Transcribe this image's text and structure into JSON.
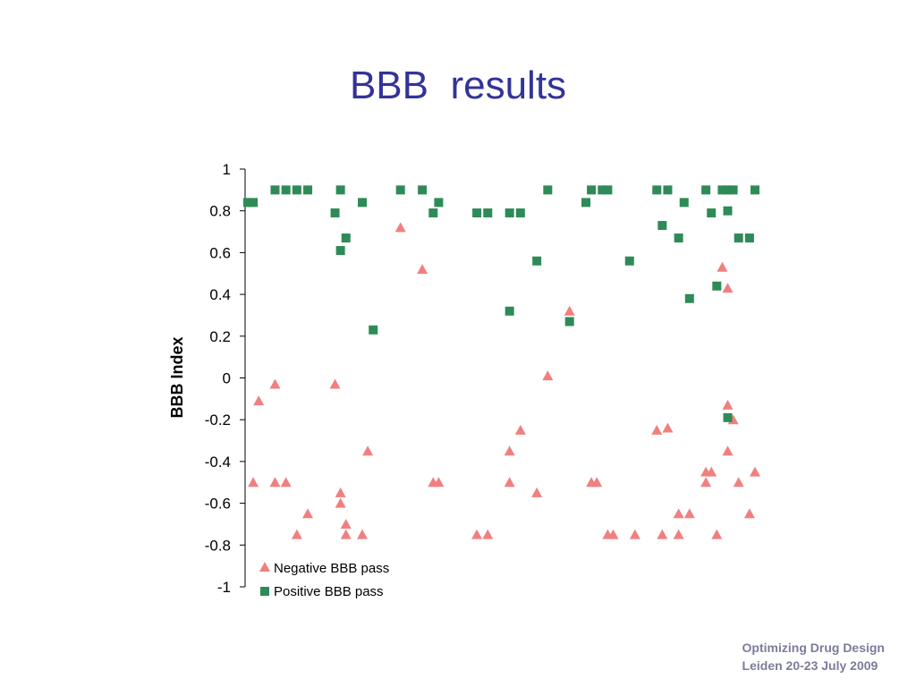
{
  "slide": {
    "title": "BBB  results",
    "footer_line1": "Optimizing Drug Design",
    "footer_line2": "Leiden 20-23 July 2009"
  },
  "chart_data": {
    "type": "scatter",
    "title": "",
    "xlabel": "",
    "ylabel": "BBB Index",
    "ylim": [
      -1,
      1
    ],
    "yticks": [
      1,
      0.8,
      0.6,
      0.4,
      0.2,
      0,
      -0.2,
      -0.4,
      -0.6,
      -0.8,
      -1
    ],
    "ytick_labels": [
      "1",
      "0.8",
      "0.6",
      "0.4",
      "0.2",
      "0",
      "-0.2",
      "-0.4",
      "-0.6",
      "-0.8",
      "-1"
    ],
    "xlim": [
      0,
      93
    ],
    "grid": false,
    "legend_position": "bottom-left",
    "series": [
      {
        "name": "Negative BBB pass",
        "marker": "triangle",
        "color": "#f08080",
        "points": [
          [
            1,
            -0.5
          ],
          [
            2,
            -0.11
          ],
          [
            5,
            -0.03
          ],
          [
            5,
            -0.5
          ],
          [
            7,
            -0.5
          ],
          [
            9,
            -0.75
          ],
          [
            11,
            -0.65
          ],
          [
            16,
            -0.03
          ],
          [
            17,
            -0.6
          ],
          [
            17,
            -0.55
          ],
          [
            18,
            -0.7
          ],
          [
            18,
            -0.75
          ],
          [
            21,
            -0.75
          ],
          [
            22,
            -0.35
          ],
          [
            28,
            0.72
          ],
          [
            32,
            0.52
          ],
          [
            34,
            -0.5
          ],
          [
            35,
            -0.5
          ],
          [
            42,
            -0.75
          ],
          [
            44,
            -0.75
          ],
          [
            48,
            -0.5
          ],
          [
            48,
            -0.35
          ],
          [
            50,
            -0.25
          ],
          [
            53,
            -0.55
          ],
          [
            55,
            0.01
          ],
          [
            59,
            0.32
          ],
          [
            63,
            -0.5
          ],
          [
            64,
            -0.5
          ],
          [
            66,
            -0.75
          ],
          [
            67,
            -0.75
          ],
          [
            71,
            -0.75
          ],
          [
            75,
            -0.25
          ],
          [
            76,
            -0.75
          ],
          [
            77,
            -0.24
          ],
          [
            79,
            -0.75
          ],
          [
            79,
            -0.65
          ],
          [
            81,
            -0.65
          ],
          [
            84,
            -0.45
          ],
          [
            84,
            -0.5
          ],
          [
            85,
            -0.45
          ],
          [
            86,
            -0.75
          ],
          [
            87,
            0.53
          ],
          [
            88,
            -0.13
          ],
          [
            88,
            0.43
          ],
          [
            88,
            -0.35
          ],
          [
            89,
            -0.2
          ],
          [
            90,
            -0.5
          ],
          [
            92,
            -0.65
          ],
          [
            93,
            -0.45
          ]
        ]
      },
      {
        "name": "Positive BBB pass",
        "marker": "square",
        "color": "#2e8b57",
        "points": [
          [
            0,
            0.84
          ],
          [
            1,
            0.84
          ],
          [
            5,
            0.9
          ],
          [
            7,
            0.9
          ],
          [
            9,
            0.9
          ],
          [
            11,
            0.9
          ],
          [
            16,
            0.79
          ],
          [
            17,
            0.61
          ],
          [
            17,
            0.9
          ],
          [
            18,
            0.67
          ],
          [
            21,
            0.84
          ],
          [
            23,
            0.23
          ],
          [
            28,
            0.9
          ],
          [
            32,
            0.9
          ],
          [
            34,
            0.79
          ],
          [
            35,
            0.84
          ],
          [
            42,
            0.79
          ],
          [
            44,
            0.79
          ],
          [
            48,
            0.79
          ],
          [
            48,
            0.32
          ],
          [
            50,
            0.79
          ],
          [
            53,
            0.56
          ],
          [
            55,
            0.9
          ],
          [
            59,
            0.27
          ],
          [
            62,
            0.84
          ],
          [
            63,
            0.9
          ],
          [
            65,
            0.9
          ],
          [
            66,
            0.9
          ],
          [
            70,
            0.56
          ],
          [
            75,
            0.9
          ],
          [
            76,
            0.73
          ],
          [
            77,
            0.9
          ],
          [
            79,
            0.67
          ],
          [
            80,
            0.84
          ],
          [
            81,
            0.38
          ],
          [
            84,
            0.9
          ],
          [
            85,
            0.79
          ],
          [
            86,
            0.44
          ],
          [
            87,
            0.9
          ],
          [
            88,
            0.9
          ],
          [
            88,
            0.8
          ],
          [
            88,
            -0.19
          ],
          [
            89,
            0.9
          ],
          [
            90,
            0.67
          ],
          [
            92,
            0.67
          ],
          [
            93,
            0.9
          ]
        ]
      }
    ]
  }
}
